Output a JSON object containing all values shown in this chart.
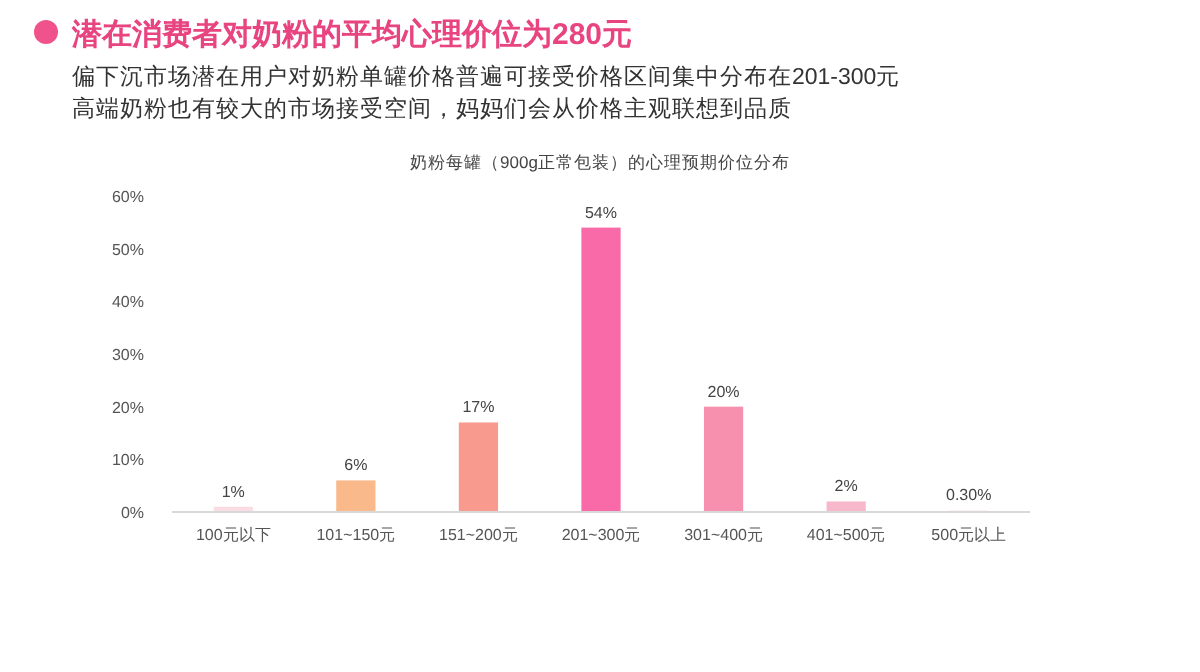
{
  "chart_data": {
    "type": "bar",
    "title": "潜在消费者对奶粉的平均心理价位为280元",
    "subtitle": "偏下沉市场潜在用户对奶粉单罐价格普遍可接受价格区间集中分布在201-300元",
    "annotations": [
      "高端奶粉也有较大的市场接受空间，妈妈们会从价格主观联想到品质",
      "奶粉每罐（900g正常包装）的心理预期价位分布"
    ],
    "categories": [
      "100元以下",
      "101~150元",
      "151~200元",
      "201~300元",
      "301~400元",
      "401~500元",
      "500元以上"
    ],
    "values": [
      1,
      6,
      17,
      54,
      20,
      2,
      0.3
    ],
    "colors": [
      "#f9dde3",
      "#f9b98a",
      "#f99a8e",
      "#f96aa8",
      "#f78fae",
      "#f8b8cc",
      "#fbe3ea"
    ],
    "value_labels": [
      "1%",
      "6%",
      "17%",
      "54%",
      "20%",
      "2%",
      "0.30%"
    ],
    "ylim": [
      0,
      60
    ],
    "yticks": [
      {
        "value": 0,
        "label": "0%"
      },
      {
        "value": 10,
        "label": "10%"
      },
      {
        "value": 20,
        "label": "20%"
      },
      {
        "value": 30,
        "label": "30%"
      },
      {
        "value": 40,
        "label": "40%"
      },
      {
        "value": 50,
        "label": "50%"
      },
      {
        "value": 60,
        "label": "60%"
      }
    ],
    "grid": false
  }
}
